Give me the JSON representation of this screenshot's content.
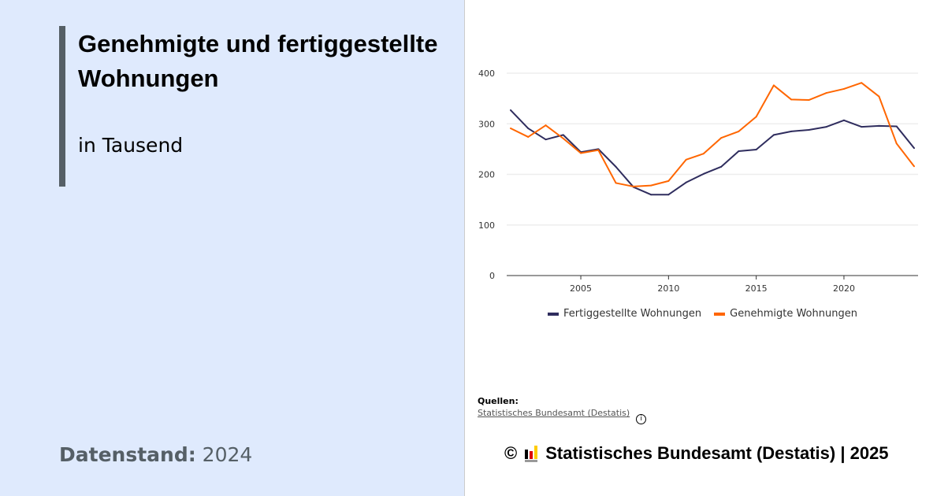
{
  "title": "Genehmigte und fertiggestellte Wohnungen",
  "subtitle": "in Tausend",
  "datenstand_label": "Datenstand:",
  "datenstand_value": "2024",
  "sources_label": "Quellen:",
  "source_link": "Statistisches Bundesamt (Destatis)",
  "info_icon": "info-icon",
  "copyright_symbol": "©",
  "copyright_text": "Statistisches Bundesamt (Destatis) | 2025",
  "chart_data": {
    "type": "line",
    "x": [
      2001,
      2002,
      2003,
      2004,
      2005,
      2006,
      2007,
      2008,
      2009,
      2010,
      2011,
      2012,
      2013,
      2014,
      2015,
      2016,
      2017,
      2018,
      2019,
      2020,
      2021,
      2022,
      2023,
      2024
    ],
    "series": [
      {
        "name": "Fertiggestellte Wohnungen",
        "color": "#2f2d5e",
        "values": [
          327,
          291,
          269,
          278,
          244,
          250,
          215,
          175,
          160,
          160,
          184,
          201,
          215,
          246,
          249,
          278,
          285,
          288,
          294,
          307,
          294,
          296,
          295,
          252
        ]
      },
      {
        "name": "Genehmigte Wohnungen",
        "color": "#ff6600",
        "values": [
          291,
          274,
          297,
          271,
          242,
          248,
          183,
          176,
          178,
          187,
          229,
          241,
          272,
          285,
          314,
          376,
          348,
          347,
          361,
          369,
          381,
          354,
          261,
          216
        ]
      }
    ],
    "xticks": [
      2005,
      2010,
      2015,
      2020
    ],
    "yticks": [
      0,
      100,
      200,
      300,
      400
    ],
    "ylim": [
      0,
      400
    ],
    "grid": true,
    "legend": "bottom"
  }
}
